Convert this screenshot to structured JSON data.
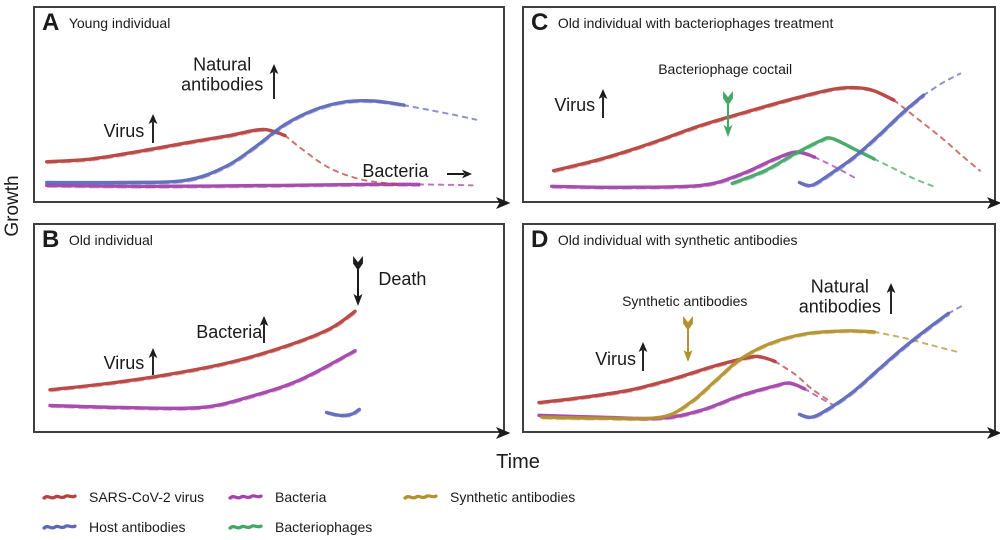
{
  "figure": {
    "y_axis_label": "Growth",
    "x_axis_label": "Time"
  },
  "colors": {
    "virus": "#b5423e",
    "host_antibodies": "#5f68b8",
    "bacteria": "#a343a9",
    "bacteriophages": "#44a768",
    "synthetic_antibodies": "#b3912f",
    "ink": "#1b1b1b",
    "panel_border": "#3f3f3f"
  },
  "legend": {
    "items": [
      {
        "label": "SARS-CoV-2 virus",
        "color_key": "virus"
      },
      {
        "label": "Host antibodies",
        "color_key": "host_antibodies"
      },
      {
        "label": "Bacteria",
        "color_key": "bacteria"
      },
      {
        "label": "Bacteriophages",
        "color_key": "bacteriophages"
      },
      {
        "label": "Synthetic antibodies",
        "color_key": "synthetic_antibodies"
      }
    ]
  },
  "chart_data": [
    {
      "letter": "A",
      "title": "Young individual",
      "type": "line",
      "xlabel": "Time",
      "ylabel": "Growth",
      "axis_note": "schematic unitless axes; points are relative fractions [time, growth] 0-1; dashed = fading tail",
      "series": [
        {
          "name": "Bacteria",
          "color_key": "bacteria",
          "solid": [
            [
              0.025,
              0.081
            ],
            [
              0.248,
              0.076
            ],
            [
              0.523,
              0.081
            ],
            [
              0.7,
              0.086
            ],
            [
              0.82,
              0.086
            ]
          ],
          "dashed": [
            [
              0.88,
              0.084
            ],
            [
              0.935,
              0.081
            ]
          ]
        },
        {
          "name": "SARS-CoV-2 virus",
          "color_key": "virus",
          "solid": [
            [
              0.025,
              0.203
            ],
            [
              0.121,
              0.218
            ],
            [
              0.227,
              0.259
            ],
            [
              0.333,
              0.305
            ],
            [
              0.417,
              0.34
            ],
            [
              0.487,
              0.371
            ],
            [
              0.534,
              0.34
            ]
          ],
          "dashed": [
            [
              0.57,
              0.27
            ],
            [
              0.63,
              0.17
            ],
            [
              0.7,
              0.11
            ],
            [
              0.78,
              0.085
            ]
          ]
        },
        {
          "name": "Host antibodies",
          "color_key": "host_antibodies",
          "solid": [
            [
              0.025,
              0.096
            ],
            [
              0.184,
              0.096
            ],
            [
              0.322,
              0.107
            ],
            [
              0.407,
              0.178
            ],
            [
              0.47,
              0.279
            ],
            [
              0.534,
              0.396
            ],
            [
              0.597,
              0.472
            ],
            [
              0.661,
              0.513
            ],
            [
              0.725,
              0.518
            ],
            [
              0.788,
              0.497
            ]
          ],
          "dashed": [
            [
              0.841,
              0.472
            ],
            [
              0.894,
              0.447
            ],
            [
              0.943,
              0.421
            ]
          ]
        }
      ],
      "annotations": [
        {
          "type": "text",
          "name": "natural-antibodies-label",
          "text": "Natural\nantibodies",
          "x": 0.4,
          "y": 0.345,
          "size": 18
        },
        {
          "type": "arrow-up",
          "name": "natural-antibodies-increase-arrow",
          "x": 0.51,
          "y": 0.385,
          "h": 36
        },
        {
          "type": "text",
          "name": "virus-label",
          "text": "Virus",
          "x": 0.19,
          "y": 0.635,
          "size": 18
        },
        {
          "type": "arrow-up",
          "name": "virus-increase-arrow",
          "x": 0.252,
          "y": 0.628,
          "h": 30
        },
        {
          "type": "text",
          "name": "bacteria-label",
          "text": "Bacteria",
          "x": 0.77,
          "y": 0.845,
          "size": 18
        },
        {
          "type": "arrow-right",
          "name": "bacteria-flat-arrow",
          "x": 0.905,
          "y": 0.858,
          "w": 26
        }
      ]
    },
    {
      "letter": "B",
      "title": "Old individual",
      "type": "line",
      "xlabel": "Time",
      "ylabel": "Growth",
      "axis_note": "schematic unitless axes; points are relative fractions [time, growth] 0-1",
      "series": [
        {
          "name": "Bacteria",
          "color_key": "bacteria",
          "solid": [
            [
              0.032,
              0.124
            ],
            [
              0.184,
              0.114
            ],
            [
              0.354,
              0.114
            ],
            [
              0.46,
              0.167
            ],
            [
              0.566,
              0.248
            ],
            [
              0.684,
              0.39
            ]
          ],
          "dashed": []
        },
        {
          "name": "SARS-CoV-2 virus",
          "color_key": "virus",
          "solid": [
            [
              0.032,
              0.2
            ],
            [
              0.163,
              0.233
            ],
            [
              0.29,
              0.276
            ],
            [
              0.417,
              0.333
            ],
            [
              0.534,
              0.41
            ],
            [
              0.629,
              0.495
            ],
            [
              0.684,
              0.581
            ]
          ],
          "dashed": []
        },
        {
          "name": "Host antibodies",
          "color_key": "host_antibodies",
          "solid": [
            [
              0.623,
              0.09
            ],
            [
              0.65,
              0.076
            ],
            [
              0.676,
              0.081
            ],
            [
              0.693,
              0.105
            ]
          ],
          "dashed": []
        }
      ],
      "annotations": [
        {
          "type": "text",
          "name": "death-label",
          "text": "Death",
          "x": 0.785,
          "y": 0.26,
          "size": 18
        },
        {
          "type": "arrow-feather-down",
          "name": "death-arrow",
          "x": 0.691,
          "y": 0.274,
          "h": 50,
          "color_key": "ink"
        },
        {
          "type": "text",
          "name": "bacteria-label",
          "text": "Bacteria",
          "x": 0.415,
          "y": 0.52,
          "size": 18
        },
        {
          "type": "arrow-up",
          "name": "bacteria-increase-arrow",
          "x": 0.49,
          "y": 0.508,
          "h": 28
        },
        {
          "type": "text",
          "name": "virus-label",
          "text": "Virus",
          "x": 0.19,
          "y": 0.67,
          "size": 18
        },
        {
          "type": "arrow-up",
          "name": "virus-increase-arrow",
          "x": 0.253,
          "y": 0.663,
          "h": 28
        }
      ]
    },
    {
      "letter": "C",
      "title": "Old individual with bacteriophages treatment",
      "type": "line",
      "xlabel": "Time",
      "ylabel": "Growth",
      "axis_note": "schematic unitless axes; points are relative fractions [time, growth] 0-1; dashed = fading tail",
      "series": [
        {
          "name": "Bacteria",
          "color_key": "bacteria",
          "solid": [
            [
              0.059,
              0.076
            ],
            [
              0.207,
              0.071
            ],
            [
              0.376,
              0.081
            ],
            [
              0.46,
              0.137
            ],
            [
              0.534,
              0.218
            ],
            [
              0.58,
              0.254
            ],
            [
              0.618,
              0.228
            ]
          ],
          "dashed": [
            [
              0.66,
              0.178
            ],
            [
              0.703,
              0.122
            ]
          ]
        },
        {
          "name": "Bacteriophages",
          "color_key": "bacteriophages",
          "solid": [
            [
              0.443,
              0.091
            ],
            [
              0.513,
              0.157
            ],
            [
              0.576,
              0.244
            ],
            [
              0.629,
              0.31
            ],
            [
              0.654,
              0.325
            ],
            [
              0.703,
              0.269
            ],
            [
              0.745,
              0.218
            ]
          ],
          "dashed": [
            [
              0.787,
              0.168
            ],
            [
              0.829,
              0.117
            ],
            [
              0.871,
              0.076
            ]
          ]
        },
        {
          "name": "SARS-CoV-2 virus",
          "color_key": "virus",
          "solid": [
            [
              0.063,
              0.157
            ],
            [
              0.165,
              0.218
            ],
            [
              0.27,
              0.299
            ],
            [
              0.376,
              0.391
            ],
            [
              0.481,
              0.467
            ],
            [
              0.586,
              0.538
            ],
            [
              0.671,
              0.584
            ],
            [
              0.734,
              0.579
            ],
            [
              0.787,
              0.523
            ]
          ],
          "dashed": [
            [
              0.84,
              0.421
            ],
            [
              0.892,
              0.32
            ],
            [
              0.935,
              0.228
            ],
            [
              0.97,
              0.157
            ]
          ]
        },
        {
          "name": "Host antibodies",
          "color_key": "host_antibodies",
          "solid": [
            [
              0.586,
              0.096
            ],
            [
              0.612,
              0.081
            ],
            [
              0.65,
              0.137
            ],
            [
              0.703,
              0.228
            ],
            [
              0.755,
              0.34
            ],
            [
              0.808,
              0.462
            ],
            [
              0.85,
              0.548
            ]
          ],
          "dashed": [
            [
              0.892,
              0.614
            ],
            [
              0.928,
              0.66
            ]
          ]
        }
      ],
      "annotations": [
        {
          "type": "text",
          "name": "virus-label",
          "text": "Virus",
          "x": 0.108,
          "y": 0.503,
          "size": 18
        },
        {
          "type": "arrow-up",
          "name": "virus-increase-arrow",
          "x": 0.168,
          "y": 0.495,
          "h": 30
        },
        {
          "type": "text",
          "name": "bacteriophage-cocktail-label",
          "text": "Bacteriophage coctail",
          "x": 0.428,
          "y": 0.323,
          "size": 14
        },
        {
          "type": "arrow-feather-down",
          "name": "bacteriophage-cocktail-injection-arrow",
          "x": 0.434,
          "y": 0.548,
          "h": 46,
          "color_key": "bacteriophages"
        }
      ]
    },
    {
      "letter": "D",
      "title": "Old individual with synthetic antibodies",
      "type": "line",
      "xlabel": "Time",
      "ylabel": "Growth",
      "axis_note": "schematic unitless axes; points are relative fractions [time, growth] 0-1; dashed = fading tail",
      "series": [
        {
          "name": "Bacteria",
          "color_key": "bacteria",
          "solid": [
            [
              0.032,
              0.076
            ],
            [
              0.165,
              0.067
            ],
            [
              0.291,
              0.062
            ],
            [
              0.376,
              0.1
            ],
            [
              0.46,
              0.171
            ],
            [
              0.534,
              0.219
            ],
            [
              0.565,
              0.233
            ],
            [
              0.597,
              0.205
            ]
          ],
          "dashed": [
            [
              0.629,
              0.162
            ],
            [
              0.66,
              0.124
            ]
          ]
        },
        {
          "name": "SARS-CoV-2 virus",
          "color_key": "virus",
          "solid": [
            [
              0.032,
              0.138
            ],
            [
              0.122,
              0.162
            ],
            [
              0.228,
              0.2
            ],
            [
              0.323,
              0.257
            ],
            [
              0.397,
              0.31
            ],
            [
              0.46,
              0.348
            ],
            [
              0.498,
              0.362
            ],
            [
              0.534,
              0.338
            ]
          ],
          "dashed": [
            [
              0.576,
              0.276
            ],
            [
              0.612,
              0.205
            ],
            [
              0.646,
              0.152
            ]
          ]
        },
        {
          "name": "Synthetic antibodies",
          "color_key": "synthetic_antibodies",
          "solid": [
            [
              0.038,
              0.067
            ],
            [
              0.165,
              0.062
            ],
            [
              0.291,
              0.067
            ],
            [
              0.354,
              0.138
            ],
            [
              0.407,
              0.243
            ],
            [
              0.46,
              0.348
            ],
            [
              0.523,
              0.424
            ],
            [
              0.597,
              0.471
            ],
            [
              0.681,
              0.486
            ],
            [
              0.745,
              0.481
            ]
          ],
          "dashed": [
            [
              0.808,
              0.452
            ],
            [
              0.871,
              0.414
            ],
            [
              0.928,
              0.381
            ]
          ]
        },
        {
          "name": "Host antibodies",
          "color_key": "host_antibodies",
          "solid": [
            [
              0.586,
              0.081
            ],
            [
              0.612,
              0.067
            ],
            [
              0.65,
              0.11
            ],
            [
              0.703,
              0.195
            ],
            [
              0.755,
              0.3
            ],
            [
              0.808,
              0.405
            ],
            [
              0.861,
              0.5
            ],
            [
              0.903,
              0.571
            ]
          ],
          "dashed": [
            [
              0.93,
              0.605
            ]
          ]
        }
      ],
      "annotations": [
        {
          "type": "text",
          "name": "synthetic-antibodies-label",
          "text": "Synthetic antibodies",
          "x": 0.342,
          "y": 0.372,
          "size": 14
        },
        {
          "type": "arrow-feather-down",
          "name": "synthetic-antibodies-injection-arrow",
          "x": 0.348,
          "y": 0.553,
          "h": 46,
          "color_key": "synthetic_antibodies"
        },
        {
          "type": "text",
          "name": "virus-label",
          "text": "Virus",
          "x": 0.195,
          "y": 0.65,
          "size": 18
        },
        {
          "type": "arrow-up",
          "name": "virus-increase-arrow",
          "x": 0.254,
          "y": 0.641,
          "h": 30
        },
        {
          "type": "text",
          "name": "natural-antibodies-label",
          "text": "Natural\nantibodies",
          "x": 0.672,
          "y": 0.348,
          "size": 18
        },
        {
          "type": "arrow-up",
          "name": "natural-antibodies-increase-arrow",
          "x": 0.781,
          "y": 0.358,
          "h": 32
        }
      ]
    }
  ]
}
